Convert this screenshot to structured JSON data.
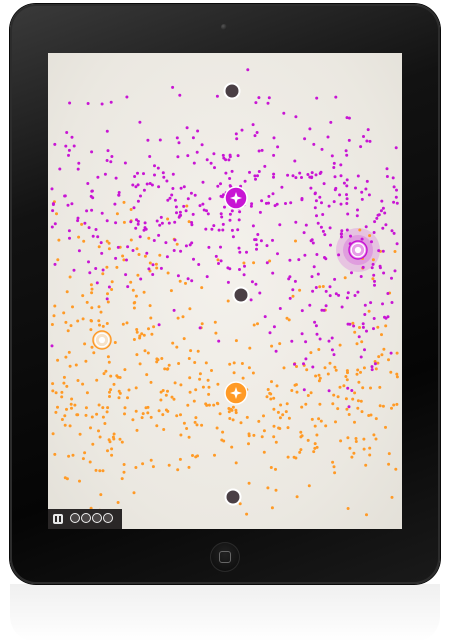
{
  "app": {
    "device": "tablet",
    "screen_background": "#efece6"
  },
  "colors": {
    "magenta": "#c815d4",
    "orange": "#ff9a26",
    "node_dark": "#4a3f45",
    "hud": "#2a2727"
  },
  "game": {
    "particles": {
      "magenta_count": 520,
      "orange_count": 520
    },
    "neutral_nodes": [
      {
        "name": "neutral-node-top"
      },
      {
        "name": "neutral-node-center"
      },
      {
        "name": "neutral-node-bottom"
      }
    ],
    "player_nodes": [
      {
        "team": "magenta",
        "name": "magenta-node-center",
        "icon": "sparkle-icon"
      },
      {
        "team": "magenta",
        "name": "magenta-node-right",
        "icon": "target-icon"
      },
      {
        "team": "orange",
        "name": "orange-node-center",
        "icon": "sparkle-icon"
      },
      {
        "team": "orange",
        "name": "orange-node-left",
        "icon": "target-icon"
      }
    ]
  },
  "hud": {
    "pause_icon": "pause-icon",
    "lives_total": 4
  }
}
